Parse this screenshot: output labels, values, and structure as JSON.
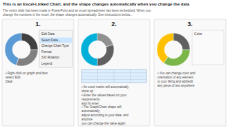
{
  "title": "This is an Excel-Linked Chart, and the shape changes automatically when you change the data",
  "subtitle": "The entire slide has been made in PowerPoint and an excel spreadsheet has been embedded. When you\nchange the numbers in the excel, the shape changes automatically. See instructions below...",
  "chart_data": [
    {
      "type": "pie",
      "title": "1.",
      "values": [
        45,
        30,
        25
      ],
      "colors": [
        "#5b9bd5",
        "#808080",
        "#404040"
      ],
      "annotations": [
        "• Right click on graph and then select 'Edit\nData'",
        "Edit Data",
        "Select Data...",
        "Change Chart Type",
        "Format",
        "3-D Rotation",
        "Legend"
      ]
    },
    {
      "type": "pie",
      "title": "2.",
      "values": [
        50,
        30,
        20
      ],
      "colors": [
        "#00b0d8",
        "#606060",
        "#909090"
      ],
      "annotations": [
        "• An excel matrix will automatically show up\n• Enter the values based on your requirements\nand hit enter\n• The Graph/Chart shape will automatically\nadjust according to your data, and anytime\nyou can change the value again"
      ]
    },
    {
      "type": "pie",
      "title": "3.",
      "values": [
        40,
        35,
        25
      ],
      "colors": [
        "#ffc000",
        "#7ab648",
        "#606060"
      ],
      "annotations": [
        "• You can change color and\norientation of any element\nto your liking and add/edit\nany piece of text anywhere",
        "Color"
      ]
    }
  ]
}
